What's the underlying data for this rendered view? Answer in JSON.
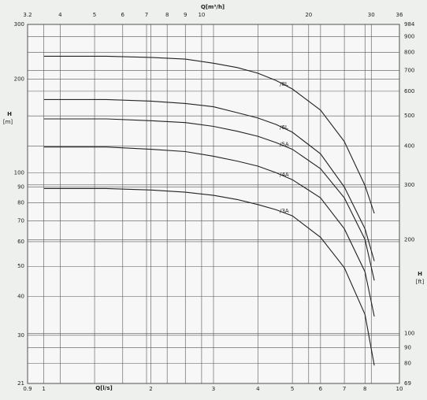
{
  "chart_data": {
    "type": "line",
    "log_scale": true,
    "grid": true,
    "xlabel": "Q[l/s]",
    "x2label": "Q[m³/h]",
    "ylabel": {
      "name": "H",
      "unit": "[m]"
    },
    "y2label": {
      "name": "H",
      "unit": "[ft]"
    },
    "x": [
      1,
      1.5,
      2,
      2.5,
      3,
      3.5,
      4,
      4.5,
      5,
      6,
      7,
      8,
      8.5
    ],
    "xlim": [
      0.9,
      10
    ],
    "xticks": [
      0.9,
      1,
      2,
      3,
      4,
      5,
      6,
      7,
      8,
      10
    ],
    "x2lim": [
      3.24,
      36
    ],
    "x2ticks": [
      {
        "value": 3.24,
        "label": "3.2"
      },
      4,
      5,
      6,
      7,
      8,
      9,
      10,
      20,
      30,
      36
    ],
    "ylim": [
      21,
      300
    ],
    "yticks": [
      21,
      30,
      40,
      50,
      60,
      70,
      80,
      90,
      100,
      200,
      300
    ],
    "y2lim": [
      69,
      984
    ],
    "y2ticks": [
      69,
      80,
      90,
      100,
      200,
      300,
      400,
      500,
      600,
      700,
      800,
      900,
      984
    ],
    "series": [
      {
        "name": "/8L",
        "color": "#222222",
        "values": [
          237,
          237,
          235,
          232,
          225,
          218,
          209,
          198,
          186,
          159,
          126,
          91,
          74
        ]
      },
      {
        "name": "/6L",
        "color": "#222222",
        "values": [
          172,
          172,
          170,
          167,
          163,
          156,
          150,
          143,
          135,
          115,
          90,
          66,
          52
        ]
      },
      {
        "name": "/5A",
        "color": "#222222",
        "values": [
          149,
          149,
          147,
          145,
          141,
          136,
          131,
          125,
          119,
          103,
          83,
          61,
          45
        ]
      },
      {
        "name": "/4A",
        "color": "#222222",
        "values": [
          121,
          121,
          119,
          117,
          113,
          109,
          105,
          100,
          95,
          83,
          66,
          48,
          34.5
        ]
      },
      {
        "name": "/3A",
        "color": "#222222",
        "values": [
          89,
          89,
          88,
          86.6,
          84.6,
          82,
          79,
          76,
          72.7,
          62,
          49.5,
          35,
          24
        ]
      }
    ]
  }
}
